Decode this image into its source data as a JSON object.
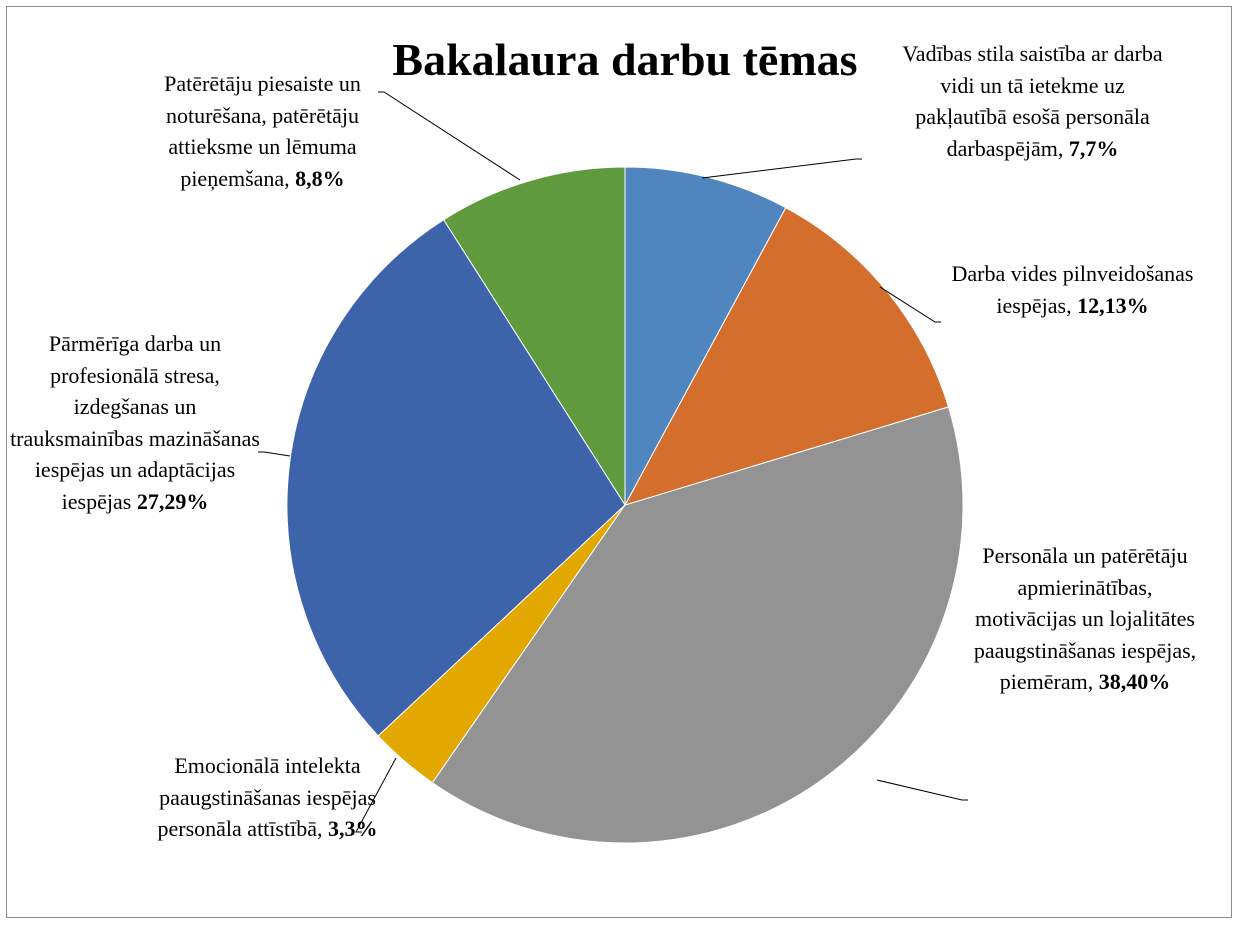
{
  "chart_data": {
    "type": "pie",
    "title": "Bakalaura darbu tēmas",
    "categories": [
      "Vadības stila saistība ar darba vidi un tā ietekme uz pakļautībā esošā personāla darbaspējām,",
      "Darba vides pilnveidošanas iespējas,",
      "Personāla un patērētāju apmierinātības, motivācijas un lojalitātes paaugstināšanas iespējas, piemēram,",
      "Emocionālā intelekta paaugstināšanas iespējas personāla attīstībā,",
      "Pārmērīga darba un profesionālā stresa, izdegšanas un trauksmainības mazināšanas iespējas un adaptācijas iespējas",
      "Patērētāju piesaiste un noturēšana, patērētāju attieksme un lēmuma pieņemšana,"
    ],
    "values": [
      7.7,
      12.13,
      38.4,
      3.3,
      27.29,
      8.8
    ],
    "value_labels": [
      "7,7%",
      "12,13%",
      "38,40%",
      "3,3%",
      "27,29%",
      "8,8%"
    ],
    "colors": [
      "#4f86bf",
      "#d36e2c",
      "#939393",
      "#e3a800",
      "#3d64ab",
      "#5f9a3f"
    ]
  }
}
